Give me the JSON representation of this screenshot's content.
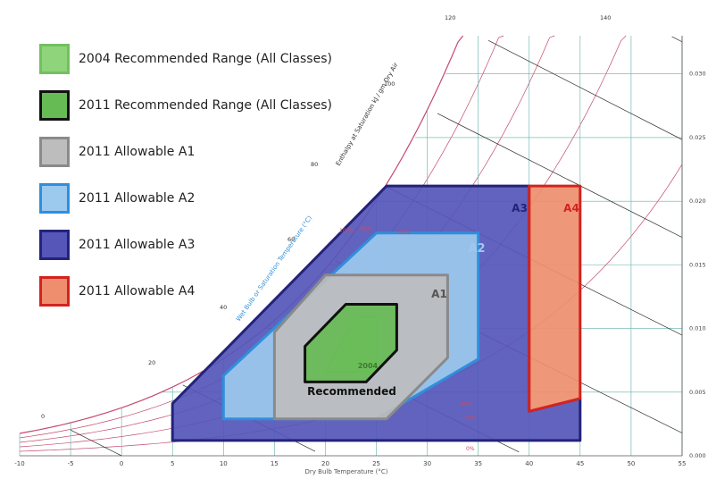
{
  "chart_data": {
    "type": "area",
    "title": "",
    "xlabel": "Dry Bulb Temperature (°C)",
    "ylabel": "",
    "x_ticks": [
      -10,
      -5,
      0,
      5,
      10,
      15,
      20,
      25,
      30,
      35,
      40,
      45,
      50,
      55
    ],
    "y_ticks_right": [
      "0.000",
      "0.005",
      "0.010",
      "0.015",
      "0.020",
      "0.025",
      "0.030"
    ],
    "xlim": [
      -10,
      55
    ],
    "ylim": [
      0,
      0.033
    ],
    "side_labels": {
      "enthalpy": "Enthalpy at Saturation kJ / gm Dry Air",
      "wet_bulb": "Wet Bulb or Saturation Temperature (°C)"
    },
    "enthalpy_labels": [
      "120",
      "140",
      "100",
      "80",
      "60",
      "40",
      "20",
      "0"
    ],
    "rh_labels": [
      "100%",
      "80%",
      "60%",
      "40%",
      "20%",
      "0%"
    ],
    "legend": [
      {
        "label": "2004 Recommended Range (All Classes)",
        "fill": "#8fd37a",
        "border": "#72c05e"
      },
      {
        "label": "2011 Recommended Range (All Classes)",
        "fill": "#66bb55",
        "border": "#111111"
      },
      {
        "label": "2011 Allowable A1",
        "fill": "#bdbdbd",
        "border": "#8a8a8a"
      },
      {
        "label": "2011 Allowable A2",
        "fill": "#9cc9ee",
        "border": "#2f8fdc"
      },
      {
        "label": "2011 Allowable A3",
        "fill": "#5556b8",
        "border": "#23237a"
      },
      {
        "label": "2011 Allowable A4",
        "fill": "#ee8e6e",
        "border": "#d3231f"
      }
    ],
    "regions": [
      {
        "name": "A3",
        "label": "A3",
        "fill": "#5556b8",
        "stroke": "#23237a",
        "label_color": "#23237a",
        "points": [
          [
            5,
            0.0041
          ],
          [
            5,
            0.0012
          ],
          [
            45,
            0.0012
          ],
          [
            45,
            0.0045
          ],
          [
            40,
            0.0035
          ],
          [
            40,
            0.0212
          ],
          [
            26,
            0.0212
          ]
        ]
      },
      {
        "name": "A4",
        "label": "A4",
        "fill": "#ee8e6e",
        "stroke": "#d3231f",
        "label_color": "#d3231f",
        "points": [
          [
            40,
            0.0212
          ],
          [
            45,
            0.0212
          ],
          [
            45,
            0.0045
          ],
          [
            40,
            0.0035
          ]
        ]
      },
      {
        "name": "A2",
        "label": "A2",
        "fill": "#9cc9ee",
        "stroke": "#2f8fdc",
        "label_color": "#9cc9ee",
        "points": [
          [
            10,
            0.0029
          ],
          [
            10,
            0.0063
          ],
          [
            25,
            0.0175
          ],
          [
            35,
            0.0175
          ],
          [
            35,
            0.0076
          ],
          [
            25,
            0.0029
          ]
        ]
      },
      {
        "name": "A1",
        "label": "A1",
        "fill": "#bdbdbd",
        "stroke": "#8a8a8a",
        "label_color": "#555555",
        "points": [
          [
            15,
            0.0029
          ],
          [
            15,
            0.0097
          ],
          [
            20,
            0.0142
          ],
          [
            32,
            0.0142
          ],
          [
            32,
            0.0077
          ],
          [
            26,
            0.0029
          ]
        ]
      },
      {
        "name": "2004",
        "label": "2004",
        "fill": "#8fd37a",
        "stroke": "#72c05e",
        "label_color": "#3d7a30",
        "points": [
          [
            20,
            0.0066
          ],
          [
            23,
            0.0109
          ],
          [
            25,
            0.0109
          ],
          [
            25,
            0.0066
          ]
        ]
      },
      {
        "name": "2011",
        "label": "Recommended",
        "fill": "#66bb55",
        "stroke": "#111111",
        "label_color": "#111111",
        "points": [
          [
            18,
            0.0058
          ],
          [
            18,
            0.0086
          ],
          [
            22,
            0.0119
          ],
          [
            27,
            0.0119
          ],
          [
            27,
            0.0083
          ],
          [
            24,
            0.0058
          ]
        ]
      }
    ]
  }
}
